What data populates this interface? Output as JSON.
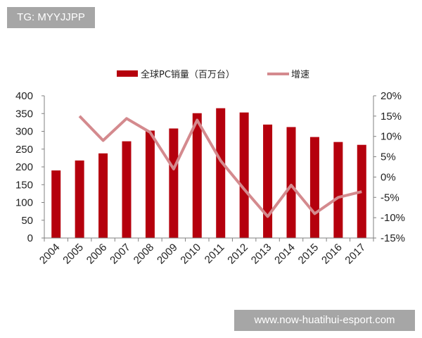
{
  "watermark_top": "TG: MYYJJPP",
  "watermark_bottom": "www.now-huatihui-esport.com",
  "colors": {
    "bar": "#b5000d",
    "line": "#d48a8e",
    "axis": "#808080",
    "watermark_bg": "#a6a6a6"
  },
  "chart_data": {
    "type": "bar+line",
    "title": "",
    "categories": [
      "2004",
      "2005",
      "2006",
      "2007",
      "2008",
      "2009",
      "2010",
      "2011",
      "2012",
      "2013",
      "2014",
      "2015",
      "2016",
      "2017"
    ],
    "series": [
      {
        "name": "全球PC销量（百万台）",
        "type": "bar",
        "axis": "left",
        "values": [
          190,
          218,
          238,
          272,
          302,
          308,
          351,
          365,
          353,
          319,
          312,
          284,
          270,
          262
        ]
      },
      {
        "name": "增速",
        "type": "line",
        "axis": "right",
        "unit": "%",
        "values": [
          null,
          15.0,
          9.0,
          14.4,
          11.0,
          2.0,
          14.0,
          4.0,
          -3.0,
          -9.7,
          -2.0,
          -9.0,
          -5.0,
          -3.6
        ]
      }
    ],
    "left_axis": {
      "ylim": [
        0,
        400
      ],
      "ticks": [
        "0",
        "50",
        "100",
        "150",
        "200",
        "250",
        "300",
        "350",
        "400"
      ]
    },
    "right_axis": {
      "ylim": [
        -15,
        20
      ],
      "ticks": [
        "-15%",
        "-10%",
        "-5%",
        "0%",
        "5%",
        "10%",
        "15%",
        "20%"
      ]
    },
    "xlabel": "",
    "ylabel": "",
    "legend_position": "top",
    "grid": false
  }
}
